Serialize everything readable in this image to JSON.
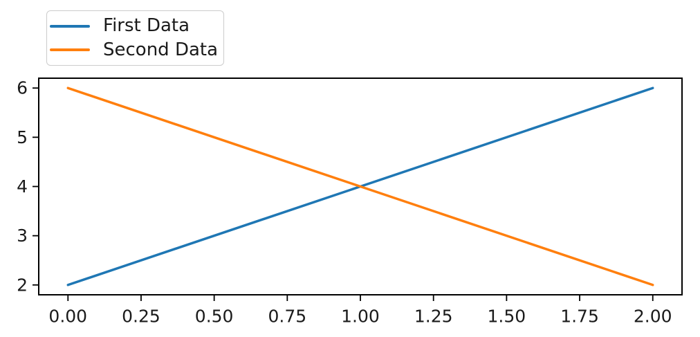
{
  "chart_data": {
    "type": "line",
    "title": "",
    "xlabel": "",
    "ylabel": "",
    "x": [
      0,
      1,
      2
    ],
    "series": [
      {
        "name": "First Data",
        "values": [
          2,
          4,
          6
        ],
        "color": "#1f77b4"
      },
      {
        "name": "Second Data",
        "values": [
          6,
          4,
          2
        ],
        "color": "#ff7f0e"
      }
    ],
    "xlim": [
      -0.1,
      2.1
    ],
    "ylim": [
      1.8,
      6.2
    ],
    "x_tick_values": [
      0,
      0.25,
      0.5,
      0.75,
      1,
      1.25,
      1.5,
      1.75,
      2
    ],
    "x_tick_labels": [
      "0.00",
      "0.25",
      "0.50",
      "0.75",
      "1.00",
      "1.25",
      "1.50",
      "1.75",
      "2.00"
    ],
    "y_tick_values": [
      2,
      3,
      4,
      5,
      6
    ],
    "y_tick_labels": [
      "2",
      "3",
      "4",
      "5",
      "6"
    ],
    "grid": false,
    "legend": {
      "position": "upper-left",
      "entries": [
        {
          "label": "First Data",
          "color": "#1f77b4"
        },
        {
          "label": "Second Data",
          "color": "#ff7f0e"
        }
      ]
    },
    "style": {
      "axis_color": "#000000",
      "tick_label_color": "#1a1a1a",
      "background": "#ffffff",
      "legend_border_color": "#cccccc"
    }
  }
}
